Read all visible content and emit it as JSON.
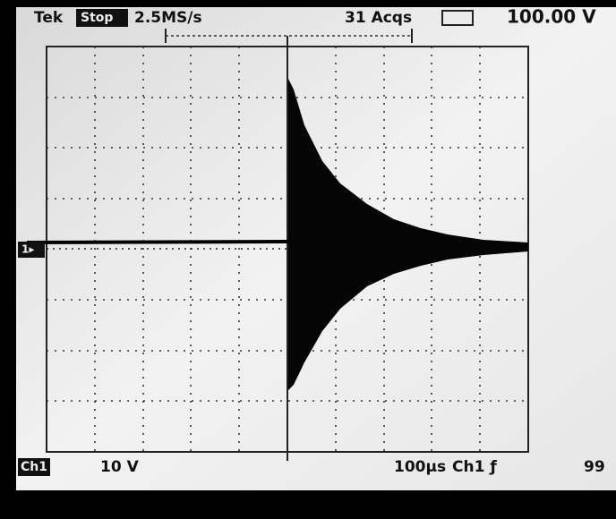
{
  "header": {
    "brand": "Tek",
    "mode": "Stop",
    "sample_rate": "2.5MS/s",
    "acquisitions": "31 Acqs",
    "position": "100.00 V"
  },
  "footer": {
    "channel": "Ch1",
    "scale": "10 V",
    "timebase": "100µs",
    "trigger": "Ch1 ƒ",
    "level": "99"
  }
}
